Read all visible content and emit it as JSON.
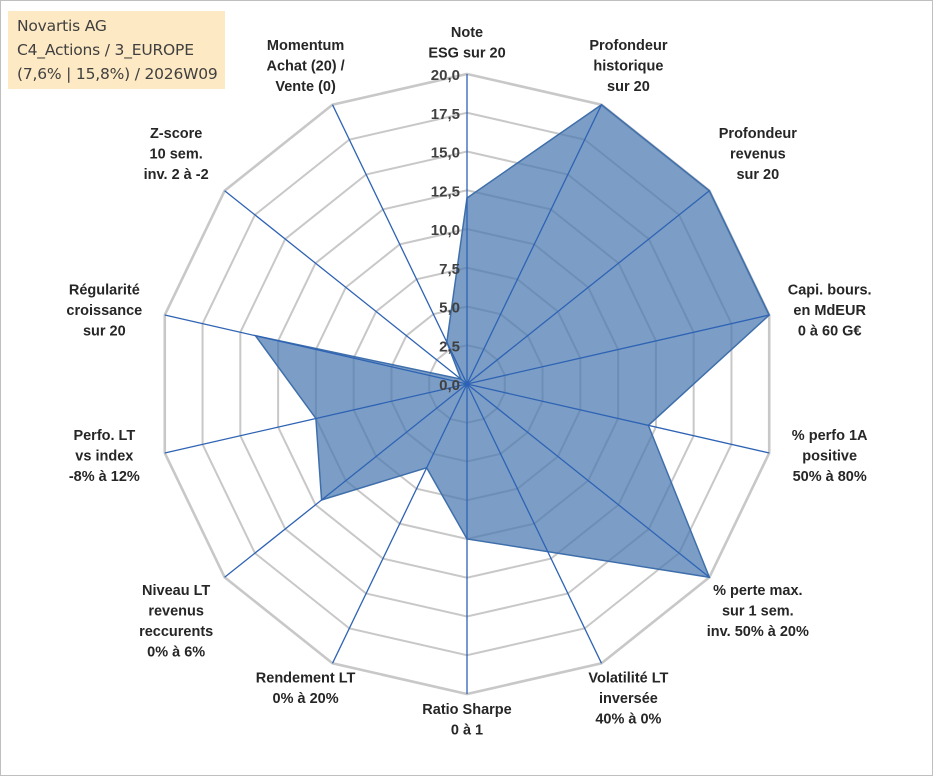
{
  "title_box": {
    "line1": "Novartis AG",
    "line2": "C4_Actions / 3_EUROPE",
    "line3": "(7,6% | 15,8%) / 2026W09"
  },
  "colors": {
    "fill": "#4a78b0",
    "fill_opacity": 0.72,
    "stroke": "#3f6fab",
    "spoke": "#2e63b4",
    "grid": "#c8c8c8",
    "title_bg": "#fde9c3"
  },
  "chart_data": {
    "type": "radar",
    "title": "Novartis AG",
    "r_range": [
      0,
      20
    ],
    "ticks": [
      "0,0",
      "2,5",
      "5,0",
      "7,5",
      "10,0",
      "12,5",
      "15,0",
      "17,5",
      "20,0"
    ],
    "tick_values": [
      0,
      2.5,
      5,
      7.5,
      10,
      12.5,
      15,
      17.5,
      20
    ],
    "axes": [
      {
        "label": [
          "Note",
          "ESG sur 20"
        ],
        "value": 12.0
      },
      {
        "label": [
          "Profondeur",
          "historique",
          "sur 20"
        ],
        "value": 20.0
      },
      {
        "label": [
          "Profondeur",
          "revenus",
          "sur 20"
        ],
        "value": 20.0
      },
      {
        "label": [
          "Capi. bours.",
          "en MdEUR",
          "0 à 60 G€"
        ],
        "value": 20.0
      },
      {
        "label": [
          "% perfo 1A",
          "positive",
          "50% à 80%"
        ],
        "value": 12.0
      },
      {
        "label": [
          "% perte max.",
          "sur 1 sem.",
          "inv. 50% à 20%"
        ],
        "value": 20.0
      },
      {
        "label": [
          "Volatilité LT",
          "inversée",
          "40% à 0%"
        ],
        "value": 12.0
      },
      {
        "label": [
          "Ratio Sharpe",
          "0 à 1"
        ],
        "value": 10.0
      },
      {
        "label": [
          "Rendement LT",
          "0% à 20%"
        ],
        "value": 6.0
      },
      {
        "label": [
          "Niveau LT",
          "revenus",
          "reccurents",
          "0% à 6%"
        ],
        "value": 12.0
      },
      {
        "label": [
          "Perfo. LT",
          "vs index",
          "-8% à 12%"
        ],
        "value": 10.0
      },
      {
        "label": [
          "Régularité",
          "croissance",
          "sur 20"
        ],
        "value": 14.0
      },
      {
        "label": [
          "Z-score",
          "10 sem.",
          "inv. 2 à -2"
        ],
        "value": 0.5
      },
      {
        "label": [
          "Momentum",
          "Achat (20) /",
          "Vente (0)"
        ],
        "value": 3.0
      }
    ],
    "series": [
      {
        "name": "Novartis AG",
        "values": [
          12.0,
          20.0,
          20.0,
          20.0,
          12.0,
          20.0,
          12.0,
          10.0,
          6.0,
          12.0,
          10.0,
          14.0,
          0.5,
          3.0
        ]
      }
    ],
    "legend": "none"
  }
}
